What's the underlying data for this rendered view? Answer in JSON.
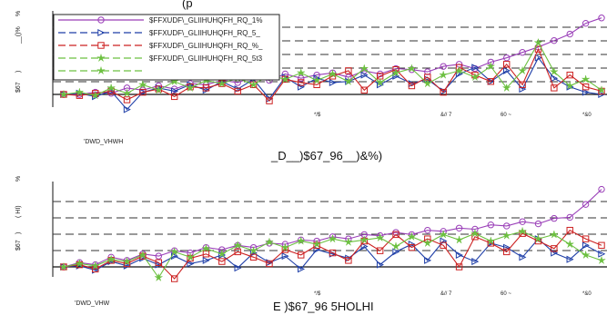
{
  "header_text": "(p",
  "chart_data": [
    {
      "type": "line",
      "caption": "_D__)$67_96__)&%)",
      "dataset_label": "'DWD_VHWH",
      "ylabel": "$67",
      "ylabel_top": "__()%",
      "y_ticks_top": [
        "%",
        ")"
      ],
      "x_tick_labels": [
        "*/$",
        "&// 7",
        "60 ~",
        "*&0"
      ],
      "grid": "dashed",
      "ylim": [
        -2,
        11
      ],
      "legend": {
        "placement": "top-left",
        "entries": [
          "$FFXUDF\\_GLIIHUHQFH_RQ_1%",
          "$FFXUDF\\_GLIIHUHQFH_RQ_5_",
          "$FFXUDF\\_GLIIHUHQFH_RQ_%_",
          "$FFXUDF\\_GLIIHUHQFH_RQ_5t3",
          ""
        ]
      },
      "series": [
        {
          "color": "#9a3fb8",
          "marker": "circle",
          "values": [
            0.0,
            0.0,
            0.2,
            0.1,
            0.6,
            0.4,
            0.8,
            0.5,
            1.0,
            0.9,
            1.3,
            1.1,
            1.6,
            1.3,
            1.9,
            1.5,
            1.8,
            2.0,
            1.6,
            2.2,
            1.9,
            2.4,
            2.3,
            2.1,
            2.6,
            2.8,
            2.4,
            3.0,
            3.4,
            3.9,
            4.4,
            5.0,
            5.6,
            6.6,
            7.1
          ]
        },
        {
          "color": "#1f3fa8",
          "marker": "triangle-right",
          "values": [
            0.0,
            0.1,
            -0.2,
            0.3,
            -1.4,
            0.2,
            0.6,
            0.3,
            0.9,
            0.4,
            1.2,
            0.5,
            1.4,
            -0.4,
            1.6,
            0.7,
            1.5,
            1.1,
            1.2,
            1.8,
            0.9,
            1.7,
            1.0,
            1.4,
            0.3,
            1.9,
            2.5,
            1.2,
            2.2,
            0.5,
            3.4,
            1.5,
            0.7,
            0.2,
            0.0
          ]
        },
        {
          "color": "#cc2020",
          "marker": "square",
          "values": [
            0.0,
            -0.1,
            0.1,
            0.3,
            -0.5,
            0.2,
            0.5,
            -0.2,
            0.7,
            0.6,
            1.0,
            0.3,
            0.9,
            -0.6,
            1.4,
            1.1,
            0.9,
            1.7,
            2.2,
            0.4,
            1.7,
            2.3,
            0.8,
            1.6,
            0.2,
            2.5,
            1.8,
            1.2,
            2.8,
            0.9,
            4.2,
            0.6,
            1.8,
            0.7,
            0.3
          ]
        },
        {
          "color": "#6cc040",
          "marker": "star",
          "values": [
            0.0,
            0.2,
            -0.1,
            0.6,
            0.1,
            0.9,
            0.4,
            1.2,
            0.6,
            1.3,
            1.0,
            1.5,
            0.9,
            1.8,
            1.4,
            2.0,
            1.3,
            1.9,
            1.2,
            2.4,
            1.1,
            2.0,
            2.4,
            1.0,
            1.8,
            2.2,
            1.6,
            2.6,
            0.6,
            2.2,
            4.8,
            2.1,
            0.8,
            1.4,
            0.4
          ]
        }
      ]
    },
    {
      "type": "line",
      "caption": "E  )$67_96   5HOLHI",
      "dataset_label": "'DWD_VHW",
      "ylabel": "$67",
      "ylabel_top": "( HI)",
      "y_ticks_top": [
        "%",
        ")"
      ],
      "x_tick_labels": [
        "*/$",
        "&// 7",
        "60 ~",
        "*&0"
      ],
      "grid": "dashed",
      "ylim": [
        -2,
        11
      ],
      "series": [
        {
          "color": "#9a3fb8",
          "marker": "circle",
          "values": [
            0.0,
            0.4,
            0.2,
            0.9,
            0.6,
            1.2,
            1.0,
            1.5,
            1.3,
            1.8,
            1.6,
            2.0,
            1.8,
            2.2,
            2.1,
            2.5,
            2.4,
            2.8,
            2.6,
            3.0,
            2.9,
            3.2,
            3.0,
            3.4,
            3.3,
            3.6,
            3.5,
            3.9,
            3.8,
            4.2,
            4.0,
            4.5,
            4.6,
            5.8,
            7.2
          ]
        },
        {
          "color": "#1f3fa8",
          "marker": "triangle-right",
          "values": [
            0.0,
            0.1,
            -0.3,
            0.5,
            0.1,
            0.8,
            0.2,
            1.0,
            0.3,
            0.6,
            1.1,
            -0.1,
            1.3,
            0.4,
            1.0,
            -0.2,
            1.6,
            1.2,
            0.8,
            1.9,
            0.2,
            1.4,
            2.1,
            0.6,
            2.4,
            1.1,
            0.5,
            2.2,
            1.8,
            0.9,
            2.6,
            1.3,
            0.7,
            2.0,
            1.2
          ]
        },
        {
          "color": "#cc2020",
          "marker": "square",
          "values": [
            0.0,
            0.2,
            -0.2,
            0.6,
            0.3,
            1.0,
            0.4,
            -1.1,
            0.8,
            1.2,
            0.5,
            1.4,
            0.9,
            0.3,
            1.6,
            1.1,
            2.0,
            1.3,
            0.6,
            2.4,
            1.5,
            3.0,
            1.8,
            2.6,
            2.0,
            0.0,
            2.8,
            2.2,
            1.4,
            3.1,
            2.4,
            1.7,
            3.4,
            2.6,
            2.0
          ]
        },
        {
          "color": "#6cc040",
          "marker": "star",
          "values": [
            0.0,
            0.3,
            0.1,
            0.7,
            0.5,
            1.1,
            -1.0,
            1.4,
            0.9,
            1.7,
            1.2,
            2.0,
            1.5,
            2.3,
            1.8,
            2.4,
            2.1,
            2.6,
            2.3,
            2.5,
            2.7,
            1.9,
            2.8,
            2.2,
            3.0,
            2.5,
            3.1,
            2.4,
            2.9,
            3.3,
            2.6,
            3.0,
            2.1,
            1.1,
            0.6
          ]
        }
      ]
    }
  ]
}
